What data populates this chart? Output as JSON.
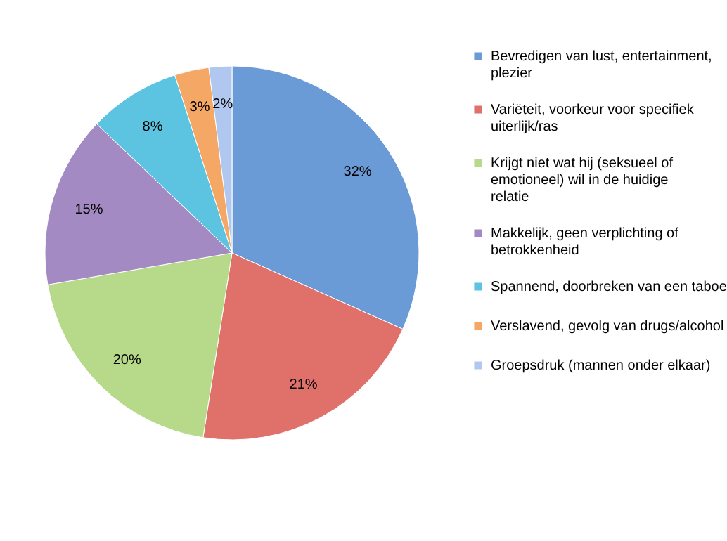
{
  "chart_data": {
    "type": "pie",
    "categories": [
      "Bevredigen van lust, entertainment, plezier",
      "Variëteit, voorkeur voor specifiek uiterlijk/ras",
      "Krijgt niet wat hij (seksueel of emotioneel) wil in de huidige relatie",
      "Makkelijk, geen verplichting of betrokkenheid",
      "Spannend, doorbreken van een taboe",
      "Verslavend, gevolg van drugs/alcohol",
      "Groepsdruk (mannen onder elkaar)"
    ],
    "values": [
      32,
      21,
      20,
      15,
      8,
      3,
      2
    ],
    "colors": [
      "#6b9bd6",
      "#e0706a",
      "#b7d98a",
      "#a38ac2",
      "#5cc3e0",
      "#f5a866",
      "#b0c8f0"
    ],
    "value_labels": [
      "32%",
      "21%",
      "20%",
      "15%",
      "8%",
      "3%",
      "2%"
    ],
    "legend": "right"
  }
}
